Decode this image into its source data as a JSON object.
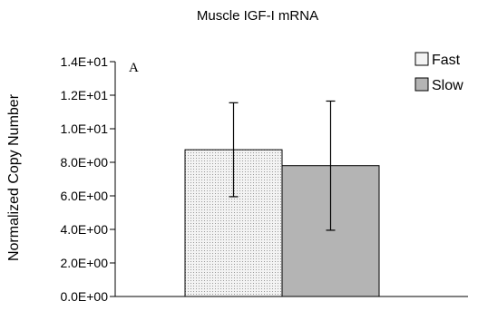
{
  "chart_data": {
    "type": "bar",
    "title": "Muscle IGF-I mRNA",
    "panel_label": "A",
    "ylabel": "Normalized Copy Number",
    "xlabel": "",
    "ylim": [
      0,
      14
    ],
    "yticks": [
      0,
      2,
      4,
      6,
      8,
      10,
      12,
      14
    ],
    "ytick_labels": [
      "0.0E+00",
      "2.0E+00",
      "4.0E+00",
      "6.0E+00",
      "8.0E+00",
      "1.0E+01",
      "1.2E+01",
      "1.4E+01"
    ],
    "grid": false,
    "legend_position": "top-right",
    "series": [
      {
        "name": "Fast",
        "values": [
          8.75
        ],
        "error": [
          2.8
        ],
        "color": "#f0f0f0",
        "pattern": "dotted"
      },
      {
        "name": "Slow",
        "values": [
          7.8
        ],
        "error": [
          3.85
        ],
        "color": "#b4b4b4",
        "pattern": "solid"
      }
    ]
  }
}
